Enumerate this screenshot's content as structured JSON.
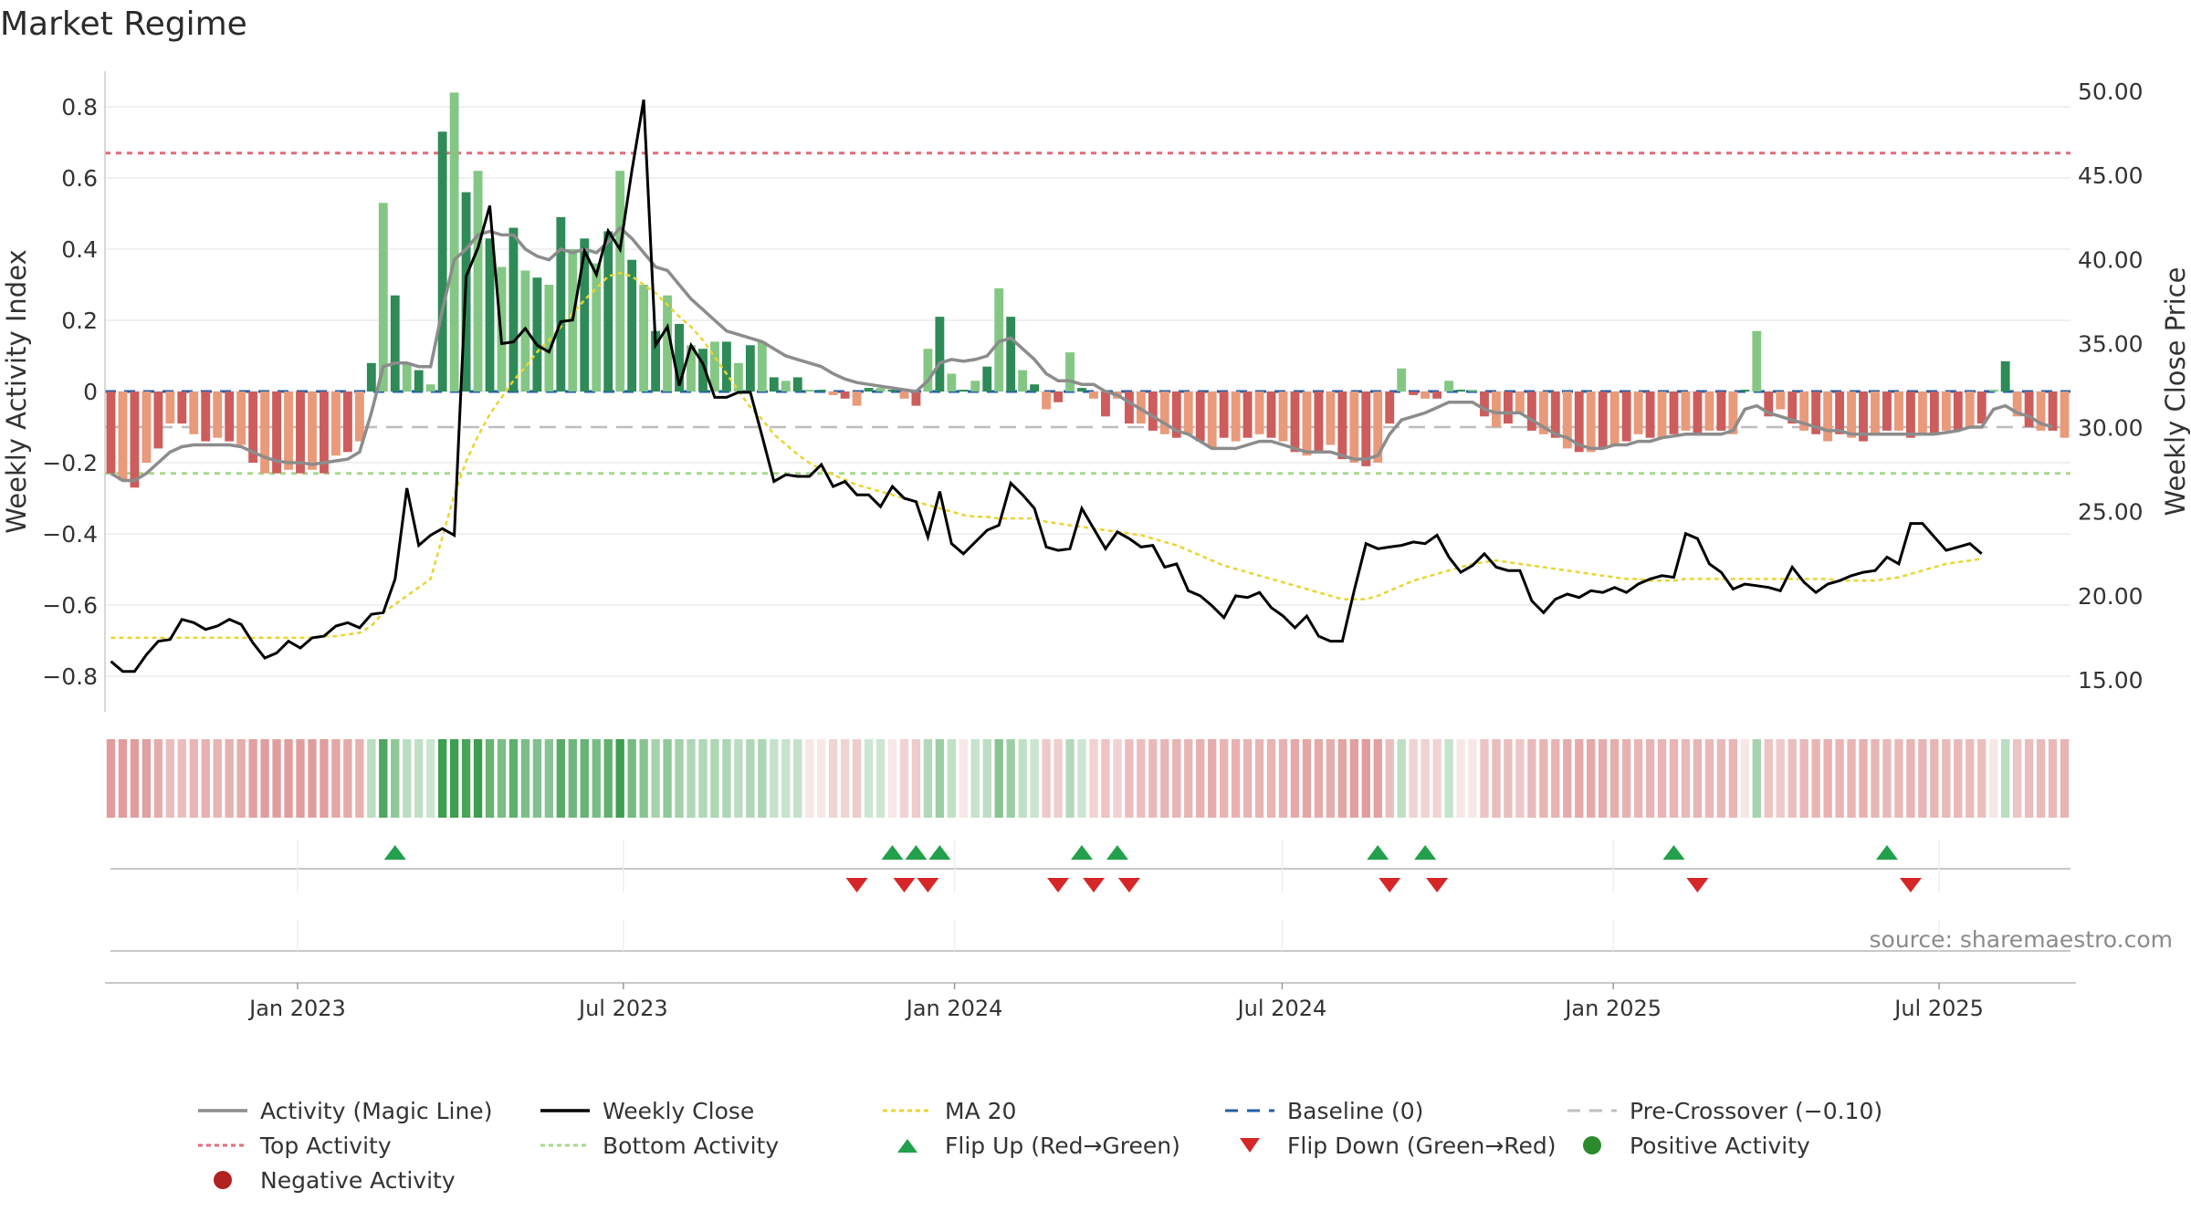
{
  "title": "Market Regime",
  "source": "source: sharemaestro.com",
  "chart_data": {
    "type": "bar+line",
    "y_left_label": "Weekly Activity Index",
    "y_right_label": "Weekly Close Price",
    "y_left_range": [
      -0.9,
      0.9
    ],
    "y_left_ticks": [
      "0.8",
      "0.6",
      "0.4",
      "0.2",
      "0",
      "−0.2",
      "−0.4",
      "−0.6",
      "−0.8"
    ],
    "y_right_range": [
      13.1,
      51.2
    ],
    "y_right_ticks": [
      "50.00",
      "45.00",
      "40.00",
      "35.00",
      "30.00",
      "25.00",
      "20.00",
      "15.00"
    ],
    "x_ticks": [
      "Jan 2023",
      "Jul 2023",
      "Jan 2024",
      "Jul 2024",
      "Jan 2025",
      "Jul 2025"
    ],
    "x_start": "2022-09-16",
    "x_end": "2025-09-12",
    "reference_lines": {
      "top_activity": 0.67,
      "bottom_activity": -0.23,
      "pre_crossover": -0.1,
      "baseline": 0
    },
    "legend": [
      {
        "key": "magic",
        "label": "Activity (Magic Line)",
        "color": "#8c8c8c"
      },
      {
        "key": "close",
        "label": "Weekly Close",
        "color": "#000000"
      },
      {
        "key": "ma",
        "label": "MA 20",
        "color": "#e8d531"
      },
      {
        "key": "base",
        "label": "Baseline (0)",
        "color": "#1f5fa8"
      },
      {
        "key": "pre",
        "label": "Pre-Crossover (−0.10)",
        "color": "#c0c0c0"
      },
      {
        "key": "top",
        "label": "Top Activity",
        "color": "#e26a79"
      },
      {
        "key": "bottom",
        "label": "Bottom Activity",
        "color": "#a6d98a"
      },
      {
        "key": "up",
        "label": "Flip Up (Red→Green)",
        "color": "#22a04b"
      },
      {
        "key": "down",
        "label": "Flip Down (Green→Red)",
        "color": "#d62728"
      },
      {
        "key": "pos",
        "label": "Positive Activity",
        "color": "#2c8a2c"
      },
      {
        "key": "neg",
        "label": "Negative Activity",
        "color": "#b22222"
      }
    ],
    "activity": [
      -0.23,
      -0.25,
      -0.27,
      -0.2,
      -0.16,
      -0.09,
      -0.09,
      -0.12,
      -0.14,
      -0.13,
      -0.14,
      -0.15,
      -0.2,
      -0.23,
      -0.23,
      -0.22,
      -0.23,
      -0.22,
      -0.23,
      -0.18,
      -0.17,
      -0.14,
      0.08,
      0.53,
      0.27,
      0.08,
      0.06,
      0.02,
      0.73,
      0.84,
      0.56,
      0.62,
      0.43,
      0.35,
      0.46,
      0.34,
      0.32,
      0.3,
      0.49,
      0.4,
      0.43,
      0.36,
      0.45,
      0.62,
      0.37,
      0.3,
      0.17,
      0.27,
      0.19,
      0.13,
      0.12,
      0.14,
      0.14,
      0.08,
      0.13,
      0.14,
      0.04,
      0.03,
      0.04,
      0.005,
      0.005,
      -0.01,
      -0.02,
      -0.04,
      0.01,
      0.01,
      0.005,
      -0.02,
      -0.04,
      0.12,
      0.21,
      0.05,
      0.005,
      0.03,
      0.07,
      0.29,
      0.21,
      0.06,
      0.02,
      -0.05,
      -0.03,
      0.11,
      0.01,
      -0.02,
      -0.07,
      -0.02,
      -0.09,
      -0.09,
      -0.11,
      -0.12,
      -0.13,
      -0.12,
      -0.14,
      -0.16,
      -0.13,
      -0.14,
      -0.13,
      -0.12,
      -0.13,
      -0.14,
      -0.17,
      -0.18,
      -0.17,
      -0.15,
      -0.19,
      -0.2,
      -0.21,
      -0.2,
      -0.09,
      0.065,
      -0.01,
      -0.02,
      -0.02,
      0.03,
      0.005,
      0.005,
      -0.07,
      -0.1,
      -0.09,
      -0.06,
      -0.11,
      -0.12,
      -0.13,
      -0.16,
      -0.17,
      -0.17,
      -0.16,
      -0.15,
      -0.14,
      -0.12,
      -0.13,
      -0.13,
      -0.12,
      -0.11,
      -0.12,
      -0.11,
      -0.11,
      -0.12,
      0.005,
      0.17,
      -0.07,
      -0.05,
      -0.09,
      -0.11,
      -0.12,
      -0.14,
      -0.12,
      -0.13,
      -0.14,
      -0.12,
      -0.11,
      -0.11,
      -0.13,
      -0.12,
      -0.12,
      -0.11,
      -0.11,
      -0.1,
      -0.09,
      0.005,
      0.085,
      -0.07,
      -0.1,
      -0.11,
      -0.11,
      -0.13
    ],
    "magic_line": [
      -0.23,
      -0.25,
      -0.25,
      -0.23,
      -0.2,
      -0.17,
      -0.155,
      -0.15,
      -0.15,
      -0.15,
      -0.15,
      -0.155,
      -0.17,
      -0.185,
      -0.195,
      -0.2,
      -0.2,
      -0.205,
      -0.2,
      -0.195,
      -0.19,
      -0.17,
      -0.06,
      0.07,
      0.08,
      0.08,
      0.07,
      0.07,
      0.23,
      0.37,
      0.4,
      0.44,
      0.45,
      0.44,
      0.44,
      0.4,
      0.38,
      0.37,
      0.4,
      0.39,
      0.4,
      0.39,
      0.42,
      0.46,
      0.43,
      0.39,
      0.35,
      0.34,
      0.3,
      0.26,
      0.23,
      0.2,
      0.17,
      0.16,
      0.15,
      0.14,
      0.12,
      0.1,
      0.09,
      0.08,
      0.07,
      0.05,
      0.035,
      0.025,
      0.02,
      0.015,
      0.01,
      0.005,
      0.0,
      0.03,
      0.08,
      0.09,
      0.085,
      0.09,
      0.1,
      0.14,
      0.15,
      0.12,
      0.09,
      0.05,
      0.03,
      0.03,
      0.02,
      0.02,
      0.0,
      -0.01,
      -0.03,
      -0.05,
      -0.07,
      -0.09,
      -0.11,
      -0.12,
      -0.14,
      -0.16,
      -0.16,
      -0.16,
      -0.15,
      -0.14,
      -0.14,
      -0.15,
      -0.16,
      -0.17,
      -0.17,
      -0.17,
      -0.18,
      -0.19,
      -0.19,
      -0.18,
      -0.12,
      -0.08,
      -0.07,
      -0.06,
      -0.045,
      -0.03,
      -0.03,
      -0.03,
      -0.05,
      -0.06,
      -0.06,
      -0.06,
      -0.08,
      -0.1,
      -0.12,
      -0.13,
      -0.15,
      -0.16,
      -0.16,
      -0.15,
      -0.15,
      -0.14,
      -0.14,
      -0.13,
      -0.125,
      -0.12,
      -0.12,
      -0.12,
      -0.12,
      -0.11,
      -0.05,
      -0.04,
      -0.06,
      -0.07,
      -0.08,
      -0.09,
      -0.1,
      -0.11,
      -0.11,
      -0.12,
      -0.12,
      -0.12,
      -0.12,
      -0.12,
      -0.12,
      -0.12,
      -0.12,
      -0.115,
      -0.11,
      -0.1,
      -0.1,
      -0.05,
      -0.04,
      -0.06,
      -0.07,
      -0.09,
      -0.1
    ],
    "weekly_close": [
      16.1,
      15.5,
      15.5,
      16.5,
      17.3,
      17.4,
      18.6,
      18.4,
      18.0,
      18.2,
      18.6,
      18.3,
      17.2,
      16.3,
      16.6,
      17.3,
      16.9,
      17.5,
      17.6,
      18.2,
      18.4,
      18.1,
      18.9,
      19.0,
      21.0,
      26.4,
      23.0,
      23.6,
      24.0,
      23.6,
      39.0,
      40.7,
      43.2,
      35.0,
      35.1,
      35.9,
      34.9,
      34.5,
      36.3,
      36.4,
      40.5,
      39.1,
      41.7,
      40.6,
      45.3,
      49.5,
      34.9,
      36.0,
      32.5,
      34.9,
      33.8,
      31.8,
      31.8,
      32.1,
      32.1,
      29.5,
      26.8,
      27.2,
      27.1,
      27.1,
      27.8,
      26.5,
      26.8,
      26.0,
      26.0,
      25.3,
      26.5,
      25.8,
      25.6,
      23.5,
      26.2,
      23.1,
      22.5,
      23.2,
      23.9,
      24.2,
      26.7,
      26.0,
      25.2,
      22.9,
      22.7,
      22.8,
      25.2,
      24.0,
      22.8,
      23.8,
      23.4,
      22.9,
      23.0,
      21.7,
      21.9,
      20.3,
      20.0,
      19.4,
      18.7,
      20.0,
      19.9,
      20.2,
      19.3,
      18.8,
      18.1,
      18.8,
      17.6,
      17.3,
      17.3,
      20.3,
      23.1,
      22.8,
      22.9,
      23.0,
      23.2,
      23.1,
      23.6,
      22.3,
      21.4,
      21.8,
      22.5,
      21.7,
      21.5,
      21.5,
      19.7,
      19.0,
      19.8,
      20.1,
      19.9,
      20.3,
      20.2,
      20.5,
      20.2,
      20.7,
      21.0,
      21.2,
      21.1,
      23.7,
      23.4,
      21.9,
      21.4,
      20.4,
      20.7,
      20.6,
      20.5,
      20.3,
      21.7,
      20.8,
      20.2,
      20.7,
      20.9,
      21.2,
      21.4,
      21.5,
      22.3,
      21.9,
      24.3,
      24.3,
      23.5,
      22.7,
      22.9,
      23.1,
      22.5
    ],
    "ma20": [
      17.5,
      17.5,
      17.5,
      17.5,
      17.5,
      17.5,
      17.5,
      17.5,
      17.5,
      17.5,
      17.5,
      17.5,
      17.5,
      17.5,
      17.5,
      17.5,
      17.5,
      17.5,
      17.6,
      17.6,
      17.7,
      17.8,
      18.2,
      19.0,
      19.5,
      20.0,
      20.5,
      21.0,
      23.5,
      26.0,
      28.0,
      29.5,
      30.8,
      31.8,
      32.8,
      33.6,
      34.5,
      35.2,
      36.0,
      36.8,
      37.6,
      38.3,
      39.0,
      39.2,
      39.0,
      38.5,
      38.0,
      37.3,
      36.6,
      36.0,
      35.2,
      34.2,
      33.2,
      32.2,
      31.2,
      30.5,
      29.6,
      29.0,
      28.4,
      27.9,
      27.5,
      27.2,
      26.9,
      26.6,
      26.4,
      26.2,
      26.0,
      25.8,
      25.6,
      25.4,
      25.2,
      25.0,
      24.8,
      24.7,
      24.7,
      24.6,
      24.6,
      24.6,
      24.6,
      24.4,
      24.3,
      24.2,
      24.1,
      24.0,
      23.9,
      23.8,
      23.7,
      23.6,
      23.4,
      23.2,
      23.0,
      22.7,
      22.4,
      22.1,
      21.8,
      21.6,
      21.4,
      21.2,
      21.0,
      20.8,
      20.6,
      20.4,
      20.2,
      20.0,
      19.8,
      19.8,
      19.8,
      20.0,
      20.3,
      20.6,
      20.9,
      21.1,
      21.3,
      21.5,
      21.7,
      21.9,
      22.0,
      22.1,
      22.0,
      21.9,
      21.8,
      21.7,
      21.6,
      21.5,
      21.4,
      21.3,
      21.2,
      21.1,
      21.0,
      21.0,
      20.9,
      20.9,
      20.9,
      21.0,
      21.0,
      21.0,
      21.0,
      21.0,
      21.0,
      21.0,
      21.0,
      21.0,
      21.0,
      21.0,
      21.0,
      21.0,
      20.9,
      20.9,
      20.9,
      20.9,
      21.0,
      21.1,
      21.3,
      21.5,
      21.7,
      21.9,
      22.0,
      22.1,
      22.2
    ],
    "flip_up_weeks": [
      24,
      66,
      68,
      70,
      82,
      85,
      107,
      111,
      132,
      150
    ],
    "flip_down_weeks": [
      63,
      67,
      69,
      80,
      83,
      86,
      108,
      112,
      134,
      152
    ]
  }
}
